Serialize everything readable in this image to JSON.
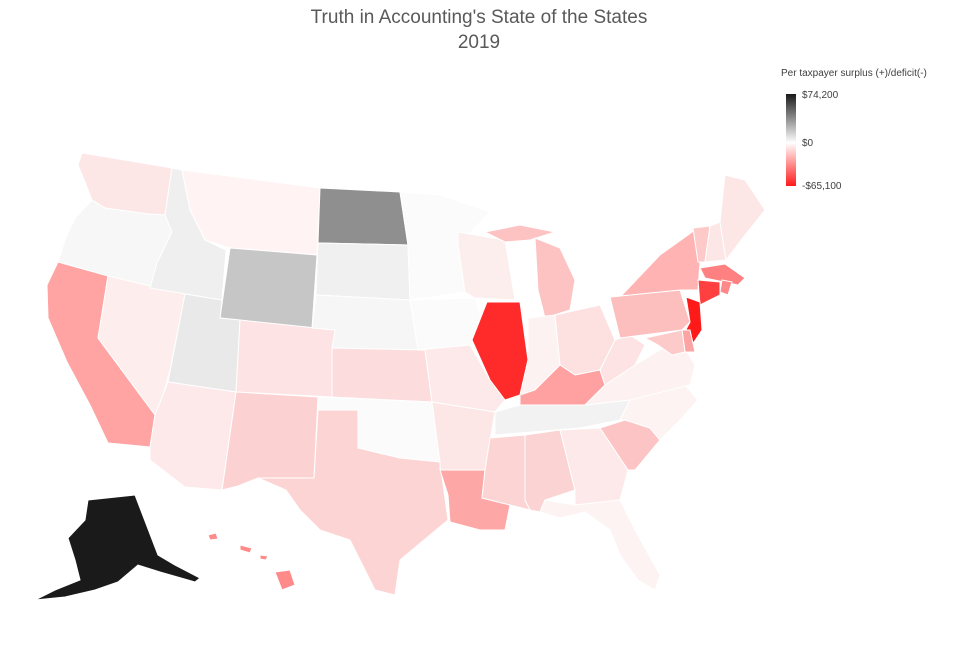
{
  "title": {
    "line1": "Truth in Accounting's State of the States",
    "line2": "2019"
  },
  "legend": {
    "title": "Per taxpayer surplus (+)/deficit(-)",
    "max_label": "$74,200",
    "mid_label": "$0",
    "min_label": "-$65,100",
    "colors": {
      "high": "#1a1a1a",
      "zero": "#ffffff",
      "low": "#ff1a1a"
    }
  },
  "map_data": {
    "type": "choropleth",
    "region": "United States",
    "metric": "Per taxpayer surplus (+)/deficit(-)",
    "scale": {
      "min": -65100,
      "mid": 0,
      "max": 74200
    },
    "states": [
      {
        "state": "WA",
        "fill": "#fde6e6"
      },
      {
        "state": "OR",
        "fill": "#f7f7f7"
      },
      {
        "state": "CA",
        "fill": "#ffa3a3"
      },
      {
        "state": "NV",
        "fill": "#fdeded"
      },
      {
        "state": "ID",
        "fill": "#efefef"
      },
      {
        "state": "MT",
        "fill": "#fff3f3"
      },
      {
        "state": "WY",
        "fill": "#c6c6c6"
      },
      {
        "state": "UT",
        "fill": "#e9e9e9"
      },
      {
        "state": "AZ",
        "fill": "#fde9e9"
      },
      {
        "state": "CO",
        "fill": "#fde3e3"
      },
      {
        "state": "NM",
        "fill": "#fcd1d1"
      },
      {
        "state": "ND",
        "fill": "#8f8f8f"
      },
      {
        "state": "SD",
        "fill": "#f0f0f0"
      },
      {
        "state": "NE",
        "fill": "#f6f6f6"
      },
      {
        "state": "KS",
        "fill": "#fcdcdc"
      },
      {
        "state": "OK",
        "fill": "#fbfbfb"
      },
      {
        "state": "TX",
        "fill": "#fdd4d4"
      },
      {
        "state": "MN",
        "fill": "#fbfbfb"
      },
      {
        "state": "IA",
        "fill": "#fbfbfb"
      },
      {
        "state": "MO",
        "fill": "#fde9e9"
      },
      {
        "state": "AR",
        "fill": "#fde6e6"
      },
      {
        "state": "LA",
        "fill": "#fda7a7"
      },
      {
        "state": "WI",
        "fill": "#fdeeee"
      },
      {
        "state": "IL",
        "fill": "#ff2a2a"
      },
      {
        "state": "MI",
        "fill": "#fdc2c2"
      },
      {
        "state": "IN",
        "fill": "#fdf2f2"
      },
      {
        "state": "OH",
        "fill": "#fde1e1"
      },
      {
        "state": "KY",
        "fill": "#ffa1a1"
      },
      {
        "state": "TN",
        "fill": "#f2f2f2"
      },
      {
        "state": "MS",
        "fill": "#fcd4d4"
      },
      {
        "state": "AL",
        "fill": "#fcd3d3"
      },
      {
        "state": "GA",
        "fill": "#fde9e9"
      },
      {
        "state": "FL",
        "fill": "#fdf3f3"
      },
      {
        "state": "SC",
        "fill": "#fcc4c4"
      },
      {
        "state": "NC",
        "fill": "#fdf3f3"
      },
      {
        "state": "VA",
        "fill": "#fdf1f1"
      },
      {
        "state": "WV",
        "fill": "#fde3e3"
      },
      {
        "state": "PA",
        "fill": "#fdbebe"
      },
      {
        "state": "NY",
        "fill": "#ffb3b3"
      },
      {
        "state": "VT",
        "fill": "#fdc9c9"
      },
      {
        "state": "NH",
        "fill": "#fde6e6"
      },
      {
        "state": "ME",
        "fill": "#fde6e6"
      },
      {
        "state": "MA",
        "fill": "#ff8080"
      },
      {
        "state": "RI",
        "fill": "#ff8888"
      },
      {
        "state": "CT",
        "fill": "#ff4040"
      },
      {
        "state": "NJ",
        "fill": "#ff1a1a"
      },
      {
        "state": "DE",
        "fill": "#fda3a3"
      },
      {
        "state": "MD",
        "fill": "#fdcaca"
      },
      {
        "state": "AK",
        "fill": "#1a1a1a"
      },
      {
        "state": "HI",
        "fill": "#ff8a8a"
      }
    ]
  }
}
